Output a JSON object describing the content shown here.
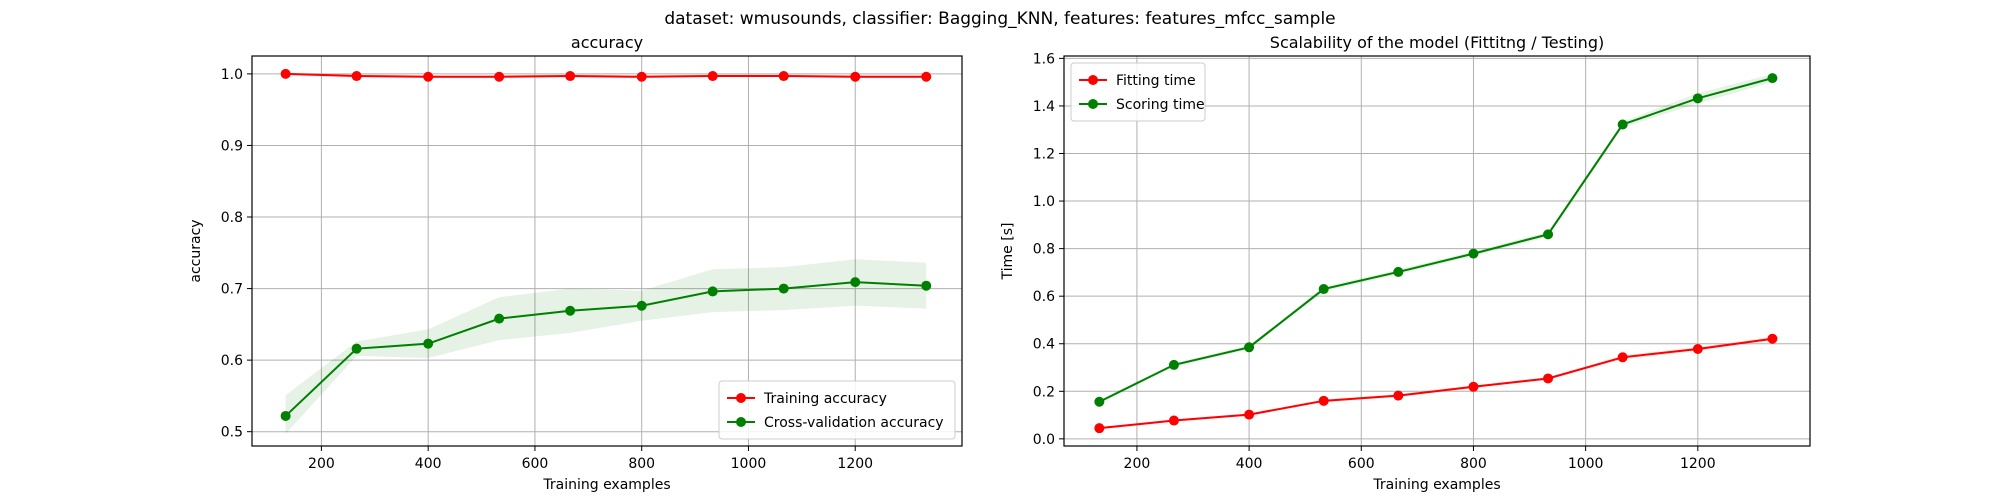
{
  "suptitle": "dataset: wmusounds, classifier: Bagging_KNN, features: features_mfcc_sample",
  "chart_data": [
    {
      "type": "line",
      "title": "accuracy",
      "xlabel": "Training examples",
      "ylabel": "accuracy",
      "xlim": [
        70,
        1400
      ],
      "ylim": [
        0.48,
        1.025
      ],
      "xticks": [
        200,
        400,
        600,
        800,
        1000,
        1200
      ],
      "yticks": [
        0.5,
        0.6,
        0.7,
        0.8,
        0.9,
        1.0
      ],
      "xtick_labels": [
        "200",
        "400",
        "600",
        "800",
        "1000",
        "1200"
      ],
      "ytick_labels": [
        "0.5",
        "0.6",
        "0.7",
        "0.8",
        "0.9",
        "1.0"
      ],
      "grid": true,
      "legend_position": "bottom-right",
      "x": [
        133,
        266,
        400,
        533,
        666,
        800,
        933,
        1066,
        1200,
        1333
      ],
      "series": [
        {
          "name": "Training accuracy",
          "color": "#ff0000",
          "values": [
            1.0,
            0.997,
            0.996,
            0.996,
            0.997,
            0.996,
            0.997,
            0.997,
            0.996,
            0.996
          ],
          "band_lower": [
            0.998,
            0.995,
            0.994,
            0.994,
            0.995,
            0.994,
            0.996,
            0.996,
            0.994,
            0.994
          ],
          "band_upper": [
            1.0,
            0.999,
            0.998,
            0.998,
            0.999,
            0.998,
            0.999,
            0.999,
            0.998,
            0.998
          ]
        },
        {
          "name": "Cross-validation accuracy",
          "color": "#008000",
          "values": [
            0.522,
            0.616,
            0.623,
            0.658,
            0.669,
            0.676,
            0.696,
            0.7,
            0.709,
            0.704
          ],
          "band_lower": [
            0.497,
            0.606,
            0.603,
            0.628,
            0.638,
            0.655,
            0.667,
            0.67,
            0.676,
            0.672
          ],
          "band_upper": [
            0.551,
            0.626,
            0.643,
            0.688,
            0.7,
            0.697,
            0.727,
            0.73,
            0.741,
            0.736
          ]
        }
      ]
    },
    {
      "type": "line",
      "title": "Scalability of the model (Fittitng / Testing)",
      "xlabel": "Training examples",
      "ylabel": "Time [s]",
      "xlim": [
        70,
        1400
      ],
      "ylim": [
        -0.03,
        1.61
      ],
      "xticks": [
        200,
        400,
        600,
        800,
        1000,
        1200
      ],
      "yticks": [
        0.0,
        0.2,
        0.4,
        0.6,
        0.8,
        1.0,
        1.2,
        1.4,
        1.6
      ],
      "xtick_labels": [
        "200",
        "400",
        "600",
        "800",
        "1000",
        "1200"
      ],
      "ytick_labels": [
        "0.0",
        "0.2",
        "0.4",
        "0.6",
        "0.8",
        "1.0",
        "1.2",
        "1.4",
        "1.6"
      ],
      "grid": true,
      "legend_position": "top-left",
      "x": [
        133,
        266,
        400,
        533,
        666,
        800,
        933,
        1066,
        1200,
        1333
      ],
      "series": [
        {
          "name": "Fitting time",
          "color": "#ff0000",
          "values": [
            0.045,
            0.077,
            0.102,
            0.16,
            0.182,
            0.219,
            0.254,
            0.343,
            0.378,
            0.421
          ],
          "band_lower": [
            0.04,
            0.072,
            0.097,
            0.154,
            0.176,
            0.213,
            0.248,
            0.335,
            0.37,
            0.413
          ],
          "band_upper": [
            0.05,
            0.082,
            0.107,
            0.166,
            0.188,
            0.225,
            0.26,
            0.351,
            0.386,
            0.429
          ]
        },
        {
          "name": "Scoring time",
          "color": "#008000",
          "values": [
            0.156,
            0.311,
            0.385,
            0.63,
            0.702,
            0.779,
            0.86,
            1.322,
            1.432,
            1.517
          ],
          "band_lower": [
            0.15,
            0.303,
            0.377,
            0.62,
            0.692,
            0.769,
            0.85,
            1.31,
            1.41,
            1.5
          ],
          "band_upper": [
            0.162,
            0.319,
            0.393,
            0.64,
            0.712,
            0.789,
            0.87,
            1.334,
            1.454,
            1.534
          ]
        }
      ]
    }
  ]
}
